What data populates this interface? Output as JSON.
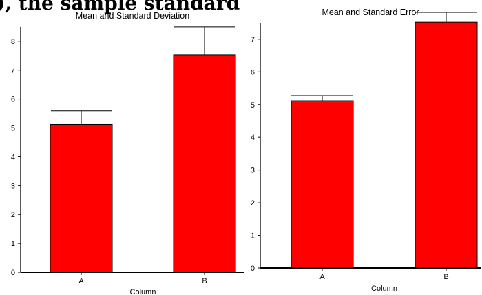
{
  "page": {
    "top_cut_text": "), the sample standard",
    "colors": {
      "bar_fill": "#ff0000",
      "bar_stroke": "#000000",
      "axis": "#000000",
      "background": "#ffffff"
    }
  },
  "chart_data": [
    {
      "type": "bar",
      "title": "Mean and Standard Deviation",
      "xlabel": "Column",
      "ylabel": "",
      "categories": [
        "A",
        "B"
      ],
      "values": [
        5.12,
        7.52
      ],
      "error": [
        0.47,
        0.98
      ],
      "ylim": [
        0,
        8.5
      ],
      "yticks": [
        0,
        1,
        2,
        3,
        4,
        5,
        6,
        7,
        8
      ],
      "grid": false
    },
    {
      "type": "bar",
      "title": "Mean and Standard Error",
      "xlabel": "Column",
      "ylabel": "",
      "categories": [
        "A",
        "B"
      ],
      "values": [
        5.12,
        7.52
      ],
      "error": [
        0.15,
        0.3
      ],
      "ylim": [
        0,
        7.5
      ],
      "yticks": [
        0,
        1,
        2,
        3,
        4,
        5,
        6,
        7
      ],
      "grid": false
    }
  ]
}
